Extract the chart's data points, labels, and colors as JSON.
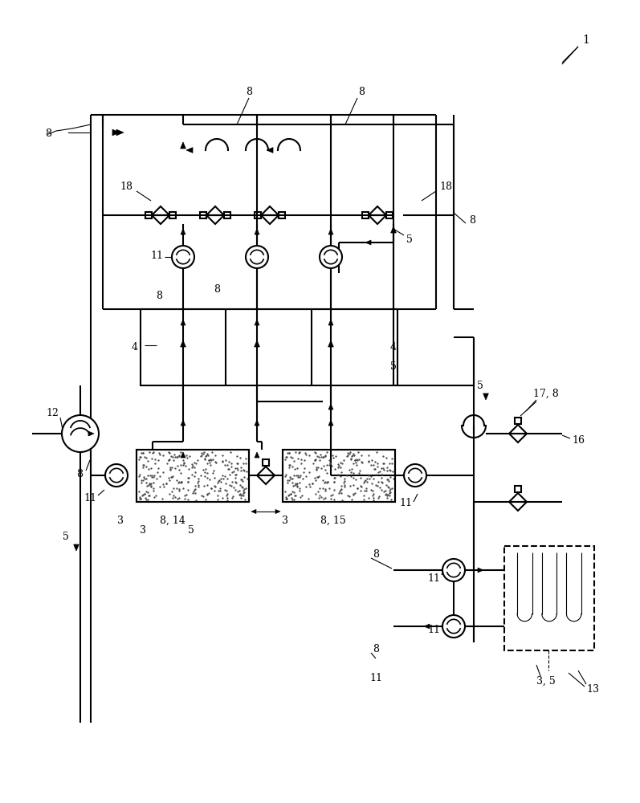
{
  "bg": "#ffffff",
  "lc": "#000000",
  "lw": 1.5,
  "fig_w": 7.97,
  "fig_h": 10.0,
  "dpi": 100
}
